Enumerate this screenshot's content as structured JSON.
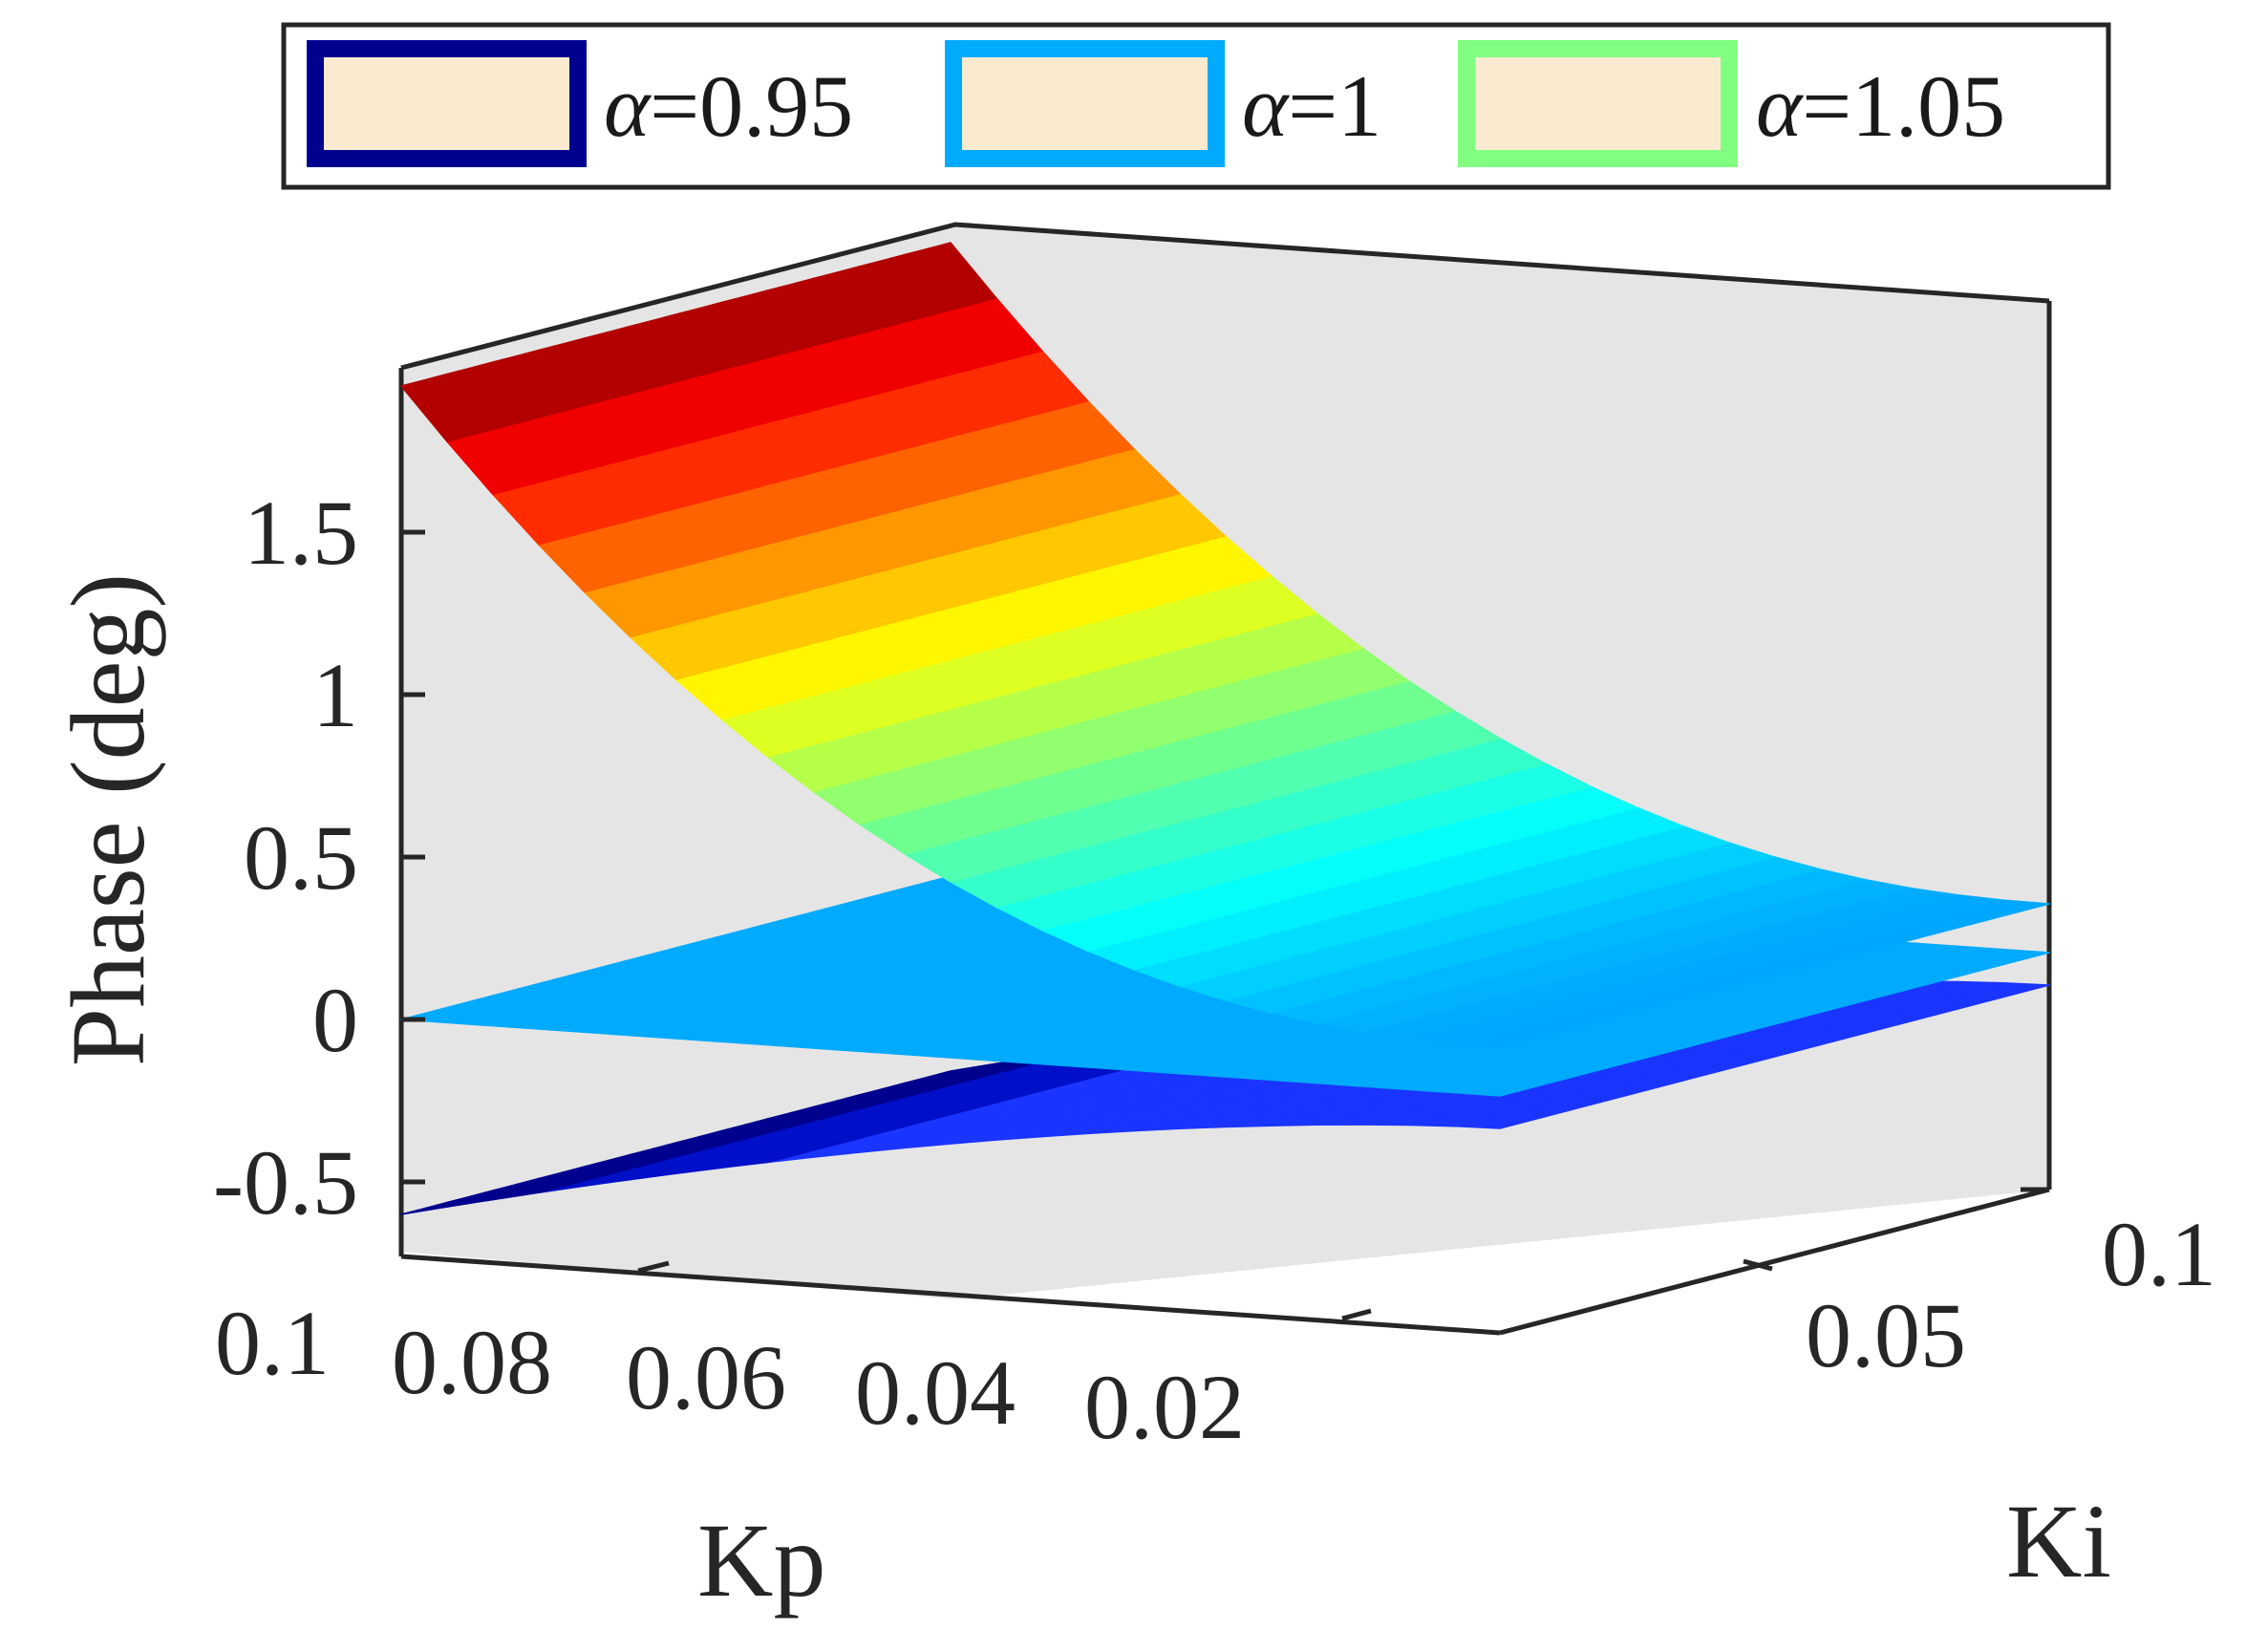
{
  "chart_data": {
    "type": "surface3d",
    "title": "",
    "xlabel": "Kp",
    "ylabel": "Ki",
    "zlabel": "Phase (deg)",
    "x_ticks": [
      "0.1",
      "0.08",
      "0.06",
      "0.04",
      "0.02"
    ],
    "y_ticks": [
      "0.05",
      "0.1"
    ],
    "z_ticks": [
      "1.5",
      "1",
      "0.5",
      "0",
      "-0.5"
    ],
    "xlim": [
      0,
      0.1
    ],
    "ylim": [
      0,
      0.1
    ],
    "zlim": [
      -0.6,
      2.0
    ],
    "legend": {
      "entries": [
        {
          "prefix": "α",
          "text": "=0.95",
          "edge_color": "#00008F",
          "face_color": "#FAEBD0"
        },
        {
          "prefix": "α",
          "text": "=1",
          "edge_color": "#00AAFF",
          "face_color": "#FAEBD0"
        },
        {
          "prefix": "α",
          "text": "=1.05",
          "edge_color": "#80FF80",
          "face_color": "#FAEBD0"
        }
      ]
    },
    "series": [
      {
        "name": "α=1.05",
        "surface": "phase rises as Kp increases",
        "z_at_kp_0.1": 1.95,
        "z_at_kp_0": 0.15
      },
      {
        "name": "α=1",
        "surface": "flat",
        "z": 0
      },
      {
        "name": "α=0.95",
        "surface": "phase falls as Kp increases",
        "z_at_kp_0.1": -0.6,
        "z_at_kp_0": -0.1
      }
    ]
  }
}
